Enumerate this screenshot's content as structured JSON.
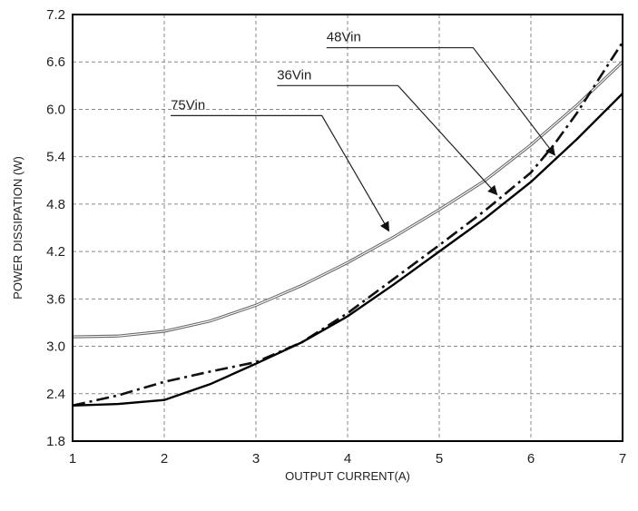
{
  "chart_data": {
    "type": "line",
    "title": "",
    "xlabel": "OUTPUT CURRENT(A)",
    "ylabel": "POWER DISSIPATION (W)",
    "xlim": [
      1,
      7
    ],
    "ylim": [
      1.8,
      7.2
    ],
    "xticks": [
      "1",
      "2",
      "3",
      "4",
      "5",
      "6",
      "7"
    ],
    "yticks": [
      "1.8",
      "2.4",
      "3.0",
      "3.6",
      "4.2",
      "4.8",
      "5.4",
      "6.0",
      "6.6",
      "7.2"
    ],
    "grid": true,
    "series": [
      {
        "name": "75Vin",
        "style": "thin-double",
        "color": "#666666",
        "x": [
          1,
          1.5,
          2,
          2.5,
          3,
          3.5,
          4,
          4.5,
          5,
          5.5,
          6,
          6.5,
          7
        ],
        "y": [
          3.12,
          3.13,
          3.19,
          3.32,
          3.52,
          3.77,
          4.06,
          4.38,
          4.73,
          5.1,
          5.55,
          6.05,
          6.6
        ]
      },
      {
        "name": "36Vin",
        "style": "dash-dot",
        "color": "#111111",
        "x": [
          1,
          1.5,
          2,
          2.5,
          3,
          3.5,
          4,
          4.5,
          5,
          5.5,
          6,
          6.25,
          6.5,
          7
        ],
        "y": [
          2.25,
          2.38,
          2.55,
          2.68,
          2.8,
          3.05,
          3.42,
          3.85,
          4.28,
          4.72,
          5.2,
          5.55,
          5.95,
          6.85
        ]
      },
      {
        "name": "48Vin",
        "style": "solid-thick",
        "color": "#000000",
        "x": [
          1,
          1.5,
          2,
          2.5,
          3,
          3.5,
          4,
          4.5,
          5,
          5.5,
          6,
          6.5,
          7
        ],
        "y": [
          2.25,
          2.27,
          2.32,
          2.52,
          2.78,
          3.05,
          3.38,
          3.78,
          4.2,
          4.62,
          5.08,
          5.62,
          6.2
        ]
      }
    ],
    "annotations": [
      {
        "text": "75Vin",
        "label_x": 2.07,
        "label_y": 5.92,
        "bend_x": 3.72,
        "bend_y": 5.92,
        "tip_x": 4.45,
        "tip_y": 4.46
      },
      {
        "text": "36Vin",
        "label_x": 3.23,
        "label_y": 6.3,
        "bend_x": 4.55,
        "bend_y": 6.3,
        "tip_x": 5.63,
        "tip_y": 4.92
      },
      {
        "text": "48Vin",
        "label_x": 3.77,
        "label_y": 6.78,
        "bend_x": 5.37,
        "bend_y": 6.78,
        "tip_x": 6.26,
        "tip_y": 5.42
      }
    ]
  }
}
